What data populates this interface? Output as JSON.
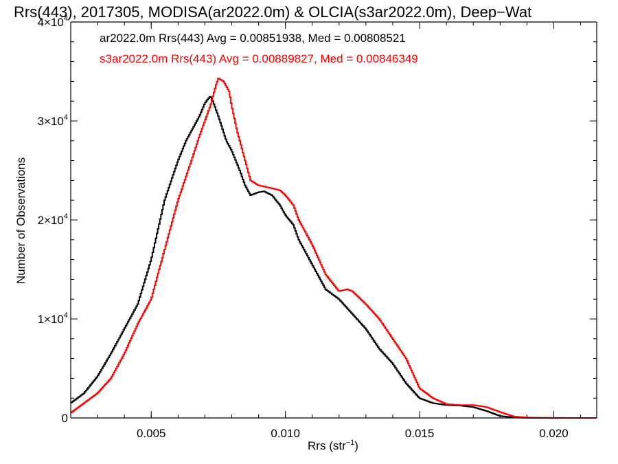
{
  "chart_data": {
    "type": "line",
    "title": "Rrs(443), 2017305, MODISA(ar2022.0m) & OLCIA(s3ar2022.0m), Deep−Wat",
    "xlabel": "Rrs (str",
    "xlabel_sup": "−1",
    "xlabel_end": ")",
    "ylabel": "Number of Observations",
    "xlim": [
      0.002,
      0.0216
    ],
    "ylim": [
      0,
      40000
    ],
    "x_ticks": [
      {
        "value": 0.005,
        "label": "0.005"
      },
      {
        "value": 0.01,
        "label": "0.010"
      },
      {
        "value": 0.015,
        "label": "0.015"
      },
      {
        "value": 0.02,
        "label": "0.020"
      }
    ],
    "y_ticks": [
      {
        "value": 0,
        "label": "0",
        "sup": ""
      },
      {
        "value": 10000,
        "label": "1×10",
        "sup": "4"
      },
      {
        "value": 20000,
        "label": "2×10",
        "sup": "4"
      },
      {
        "value": 30000,
        "label": "3×10",
        "sup": "4"
      },
      {
        "value": 40000,
        "label": "4×10",
        "sup": "4"
      }
    ],
    "x_minor_step": 0.001,
    "y_minor_step": 2000,
    "grid": false,
    "legend_position": "top-left",
    "series": [
      {
        "name": "ar2022.0m Rrs(443) Avg = 0.00851938, Med = 0.00808521",
        "color": "#000000",
        "x": [
          0.002,
          0.0025,
          0.003,
          0.0035,
          0.004,
          0.0045,
          0.005,
          0.0055,
          0.006,
          0.0063,
          0.0066,
          0.0068,
          0.007,
          0.0072,
          0.0073,
          0.0075,
          0.0078,
          0.008,
          0.0083,
          0.0085,
          0.0087,
          0.0089,
          0.009,
          0.0092,
          0.0095,
          0.0098,
          0.01,
          0.0103,
          0.0105,
          0.011,
          0.0115,
          0.012,
          0.0125,
          0.013,
          0.0135,
          0.014,
          0.0145,
          0.015,
          0.0155,
          0.016,
          0.0165,
          0.017,
          0.0175,
          0.018,
          0.0185,
          0.019,
          0.0195,
          0.02,
          0.0205,
          0.021,
          0.0216
        ],
        "y": [
          1500,
          2500,
          4200,
          6500,
          9000,
          11500,
          16000,
          22000,
          26000,
          28000,
          29500,
          30500,
          31800,
          32500,
          32000,
          30500,
          28000,
          27000,
          25000,
          23500,
          22500,
          22700,
          22800,
          22900,
          22500,
          21500,
          20500,
          19500,
          18000,
          15500,
          13000,
          12000,
          10500,
          9000,
          7000,
          5500,
          3500,
          2000,
          1500,
          1300,
          1250,
          1100,
          700,
          200,
          50,
          10,
          5,
          3,
          2,
          1,
          0
        ]
      },
      {
        "name": "s3ar2022.0m Rrs(443) Avg = 0.00889827, Med = 0.00846349",
        "color": "#ff0000",
        "x": [
          0.002,
          0.0025,
          0.003,
          0.0035,
          0.004,
          0.0045,
          0.005,
          0.0055,
          0.006,
          0.0065,
          0.0068,
          0.007,
          0.0072,
          0.0074,
          0.0075,
          0.0077,
          0.0079,
          0.008,
          0.0082,
          0.0085,
          0.0087,
          0.009,
          0.0095,
          0.0098,
          0.01,
          0.0103,
          0.0105,
          0.011,
          0.0115,
          0.012,
          0.0123,
          0.0125,
          0.013,
          0.0135,
          0.014,
          0.0145,
          0.015,
          0.0155,
          0.016,
          0.0165,
          0.017,
          0.0175,
          0.018,
          0.0185,
          0.019,
          0.0195,
          0.02,
          0.0205,
          0.021,
          0.0216
        ],
        "y": [
          500,
          1500,
          2500,
          4000,
          6500,
          9500,
          12000,
          17000,
          22000,
          26000,
          28500,
          30000,
          31500,
          33500,
          34300,
          34000,
          33000,
          31500,
          29000,
          26000,
          24000,
          23500,
          23200,
          23000,
          22500,
          21500,
          20000,
          17500,
          14500,
          12800,
          13000,
          12800,
          11500,
          10000,
          8000,
          6000,
          3000,
          2000,
          1400,
          1300,
          1300,
          1100,
          600,
          150,
          40,
          10,
          5,
          3,
          2,
          0
        ]
      }
    ]
  }
}
